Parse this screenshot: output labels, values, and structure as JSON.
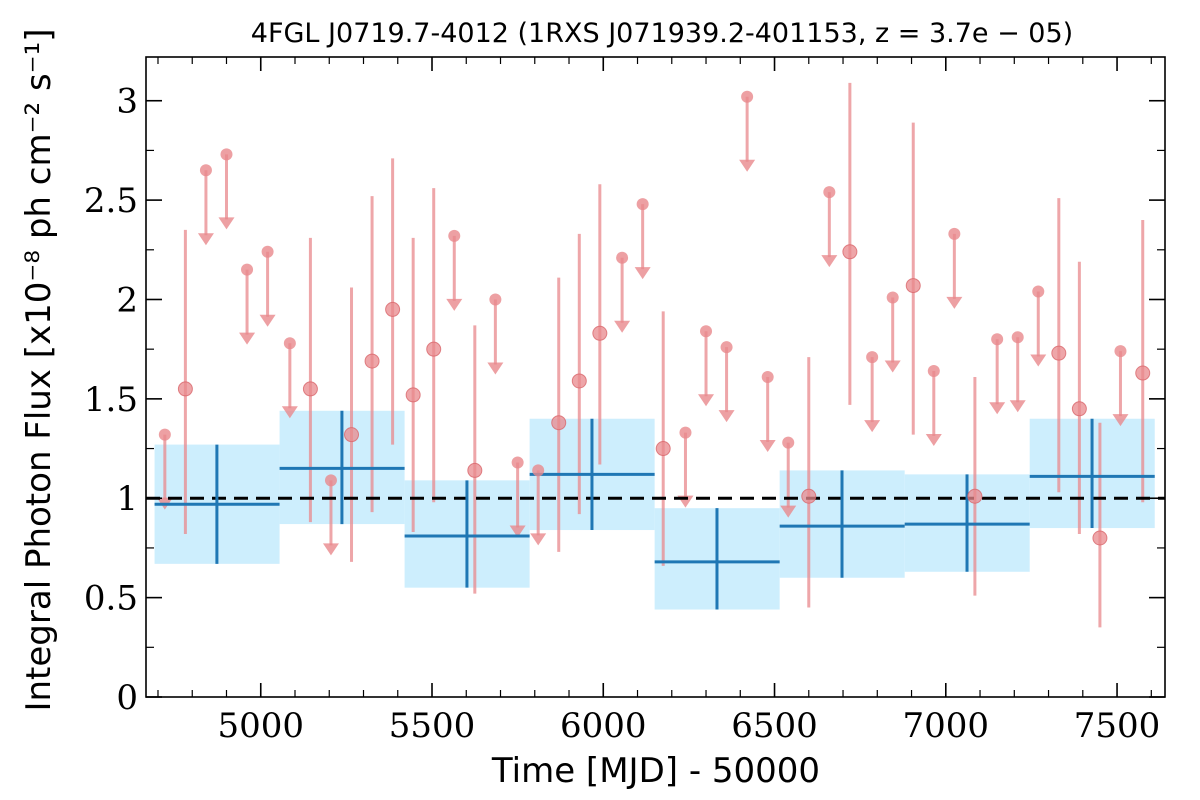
{
  "chart_data": {
    "type": "scatter",
    "title": "4FGL J0719.7-4012 (1RXS J071939.2-401153, z = 3.7e − 05)",
    "xlabel": "Time [MJD] - 50000",
    "ylabel": "Integral Photon Flux [x10⁻⁸ ph cm⁻² s⁻¹]",
    "xlim": [
      4665,
      7640
    ],
    "ylim": [
      0,
      3.22
    ],
    "xticks": [
      5000,
      5500,
      6000,
      6500,
      7000,
      7500
    ],
    "xtick_labels": [
      "5000",
      "5500",
      "6000",
      "6500",
      "7000",
      "7500"
    ],
    "yticks": [
      0,
      0.5,
      1,
      1.5,
      2,
      2.5,
      3
    ],
    "ytick_labels": [
      "0",
      "0.5",
      "1",
      "1.5",
      "2",
      "2.5",
      "3"
    ],
    "reference_line": 1.0,
    "colors": {
      "short_bins": "#e8888c",
      "long_bins": "#1f77b4",
      "long_bins_band": "#cdeefd",
      "reference": "#000000"
    },
    "long_bins": [
      {
        "x_start": 4690,
        "x_end": 5055,
        "x": 4872,
        "y": 0.97,
        "ylo": 0.67,
        "yhi": 1.27
      },
      {
        "x_start": 5055,
        "x_end": 5420,
        "x": 5237,
        "y": 1.15,
        "ylo": 0.87,
        "yhi": 1.44
      },
      {
        "x_start": 5420,
        "x_end": 5785,
        "x": 5602,
        "y": 0.81,
        "ylo": 0.55,
        "yhi": 1.09
      },
      {
        "x_start": 5785,
        "x_end": 6150,
        "x": 5967,
        "y": 1.12,
        "ylo": 0.84,
        "yhi": 1.4
      },
      {
        "x_start": 6150,
        "x_end": 6515,
        "x": 6332,
        "y": 0.68,
        "ylo": 0.44,
        "yhi": 0.95
      },
      {
        "x_start": 6515,
        "x_end": 6880,
        "x": 6697,
        "y": 0.86,
        "ylo": 0.6,
        "yhi": 1.14
      },
      {
        "x_start": 6880,
        "x_end": 7245,
        "x": 7062,
        "y": 0.87,
        "ylo": 0.63,
        "yhi": 1.12
      },
      {
        "x_start": 7245,
        "x_end": 7610,
        "x": 7427,
        "y": 1.11,
        "ylo": 0.85,
        "yhi": 1.4
      }
    ],
    "short_bins_measured": [
      {
        "x": 4780,
        "y": 1.55,
        "ylo": 0.82,
        "yhi": 2.35
      },
      {
        "x": 5145,
        "y": 1.55,
        "ylo": 0.88,
        "yhi": 2.31
      },
      {
        "x": 5265,
        "y": 1.32,
        "ylo": 0.68,
        "yhi": 2.06
      },
      {
        "x": 5325,
        "y": 1.69,
        "ylo": 0.93,
        "yhi": 2.52
      },
      {
        "x": 5385,
        "y": 1.95,
        "ylo": 1.27,
        "yhi": 2.71
      },
      {
        "x": 5445,
        "y": 1.52,
        "ylo": 0.83,
        "yhi": 2.31
      },
      {
        "x": 5505,
        "y": 1.75,
        "ylo": 0.98,
        "yhi": 2.56
      },
      {
        "x": 5625,
        "y": 1.14,
        "ylo": 0.52,
        "yhi": 1.87
      },
      {
        "x": 5870,
        "y": 1.38,
        "ylo": 0.73,
        "yhi": 2.11
      },
      {
        "x": 5930,
        "y": 1.59,
        "ylo": 0.92,
        "yhi": 2.33
      },
      {
        "x": 5990,
        "y": 1.83,
        "ylo": 1.17,
        "yhi": 2.58
      },
      {
        "x": 6175,
        "y": 1.25,
        "ylo": 0.66,
        "yhi": 1.94
      },
      {
        "x": 6600,
        "y": 1.01,
        "ylo": 0.45,
        "yhi": 1.71
      },
      {
        "x": 6720,
        "y": 2.24,
        "ylo": 1.47,
        "yhi": 3.09
      },
      {
        "x": 6905,
        "y": 2.07,
        "ylo": 1.32,
        "yhi": 2.89
      },
      {
        "x": 7085,
        "y": 1.01,
        "ylo": 0.51,
        "yhi": 1.61
      },
      {
        "x": 7330,
        "y": 1.73,
        "ylo": 1.03,
        "yhi": 2.51
      },
      {
        "x": 7390,
        "y": 1.45,
        "ylo": 0.82,
        "yhi": 2.19
      },
      {
        "x": 7450,
        "y": 0.8,
        "ylo": 0.35,
        "yhi": 1.38
      },
      {
        "x": 7575,
        "y": 1.63,
        "ylo": 0.98,
        "yhi": 2.4
      }
    ],
    "short_bins_upper_limits": [
      {
        "x": 4720,
        "y": 1.32
      },
      {
        "x": 4840,
        "y": 2.65
      },
      {
        "x": 4900,
        "y": 2.73
      },
      {
        "x": 4960,
        "y": 2.15
      },
      {
        "x": 5020,
        "y": 2.24
      },
      {
        "x": 5085,
        "y": 1.78
      },
      {
        "x": 5205,
        "y": 1.09
      },
      {
        "x": 5565,
        "y": 2.32
      },
      {
        "x": 5685,
        "y": 2.0
      },
      {
        "x": 5750,
        "y": 1.18
      },
      {
        "x": 5810,
        "y": 1.14
      },
      {
        "x": 6055,
        "y": 2.21
      },
      {
        "x": 6115,
        "y": 2.48
      },
      {
        "x": 6240,
        "y": 1.33
      },
      {
        "x": 6300,
        "y": 1.84
      },
      {
        "x": 6360,
        "y": 1.76
      },
      {
        "x": 6420,
        "y": 3.02
      },
      {
        "x": 6480,
        "y": 1.61
      },
      {
        "x": 6540,
        "y": 1.28
      },
      {
        "x": 6660,
        "y": 2.54
      },
      {
        "x": 6785,
        "y": 1.71
      },
      {
        "x": 6845,
        "y": 2.01
      },
      {
        "x": 6965,
        "y": 1.64
      },
      {
        "x": 7025,
        "y": 2.33
      },
      {
        "x": 7150,
        "y": 1.8
      },
      {
        "x": 7210,
        "y": 1.81
      },
      {
        "x": 7270,
        "y": 2.04
      },
      {
        "x": 7510,
        "y": 1.74
      }
    ]
  }
}
